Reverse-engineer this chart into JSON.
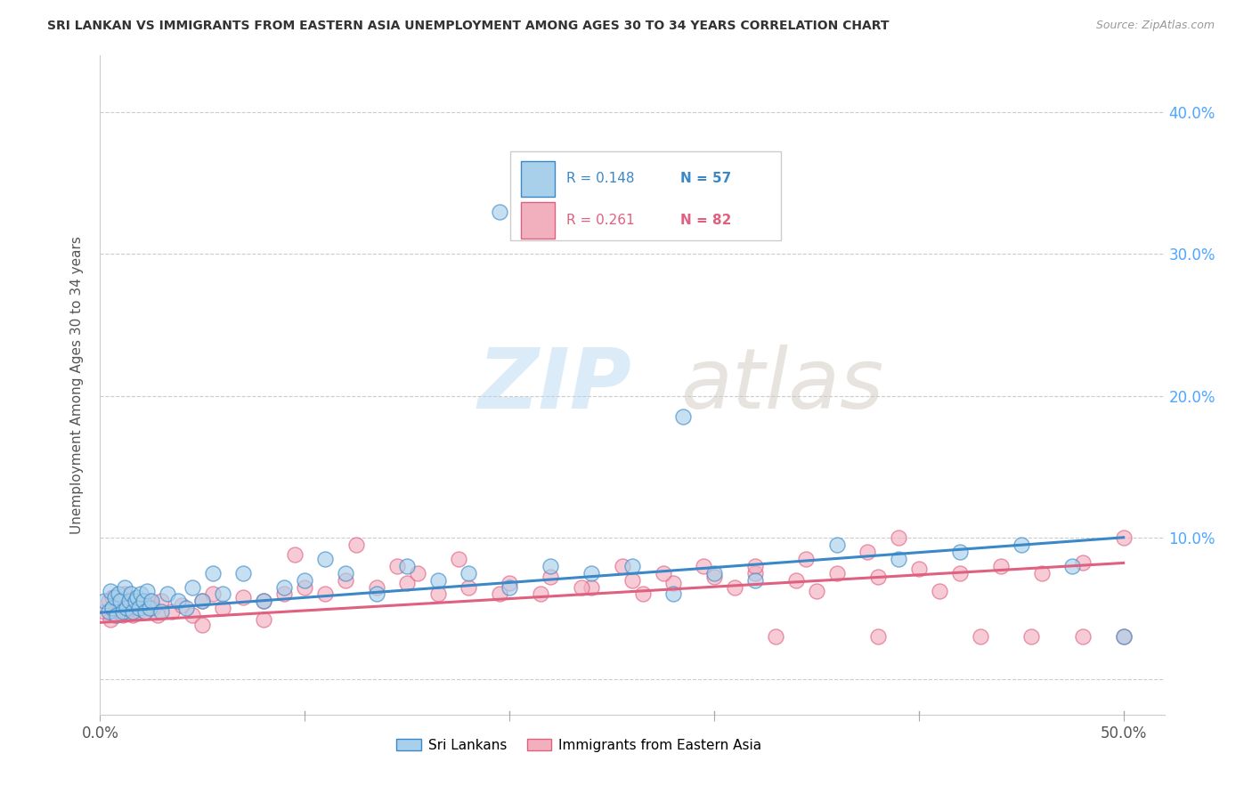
{
  "title": "SRI LANKAN VS IMMIGRANTS FROM EASTERN ASIA UNEMPLOYMENT AMONG AGES 30 TO 34 YEARS CORRELATION CHART",
  "source": "Source: ZipAtlas.com",
  "ylabel": "Unemployment Among Ages 30 to 34 years",
  "xlim": [
    0.0,
    0.52
  ],
  "ylim": [
    -0.025,
    0.44
  ],
  "xticks": [
    0.0,
    0.1,
    0.2,
    0.3,
    0.4,
    0.5
  ],
  "xtick_labels": [
    "0.0%",
    "",
    "",
    "",
    "",
    "50.0%"
  ],
  "ytick_positions": [
    0.0,
    0.1,
    0.2,
    0.3,
    0.4
  ],
  "ytick_labels_right": [
    "",
    "10.0%",
    "20.0%",
    "30.0%",
    "40.0%"
  ],
  "blue_r": 0.148,
  "blue_n": 57,
  "pink_r": 0.261,
  "pink_n": 82,
  "blue_color": "#a8d0ea",
  "pink_color": "#f2b0bf",
  "blue_line_color": "#3a88c8",
  "pink_line_color": "#e06080",
  "blue_trend_x": [
    0.0,
    0.5
  ],
  "blue_trend_y": [
    0.047,
    0.1
  ],
  "pink_trend_x": [
    0.0,
    0.5
  ],
  "pink_trend_y": [
    0.04,
    0.082
  ],
  "watermark_text": "ZIPatlas",
  "blue_scatter_x": [
    0.002,
    0.004,
    0.005,
    0.006,
    0.007,
    0.008,
    0.009,
    0.01,
    0.011,
    0.012,
    0.013,
    0.014,
    0.015,
    0.016,
    0.017,
    0.018,
    0.019,
    0.02,
    0.021,
    0.022,
    0.023,
    0.024,
    0.025,
    0.03,
    0.033,
    0.038,
    0.042,
    0.045,
    0.05,
    0.055,
    0.06,
    0.07,
    0.08,
    0.09,
    0.1,
    0.11,
    0.12,
    0.135,
    0.15,
    0.165,
    0.18,
    0.2,
    0.22,
    0.24,
    0.26,
    0.28,
    0.3,
    0.32,
    0.36,
    0.39,
    0.42,
    0.45,
    0.475,
    0.195,
    0.255,
    0.285,
    0.5
  ],
  "blue_scatter_y": [
    0.055,
    0.048,
    0.062,
    0.05,
    0.058,
    0.045,
    0.06,
    0.055,
    0.048,
    0.065,
    0.05,
    0.055,
    0.06,
    0.048,
    0.055,
    0.058,
    0.05,
    0.06,
    0.055,
    0.048,
    0.062,
    0.05,
    0.055,
    0.048,
    0.06,
    0.055,
    0.05,
    0.065,
    0.055,
    0.075,
    0.06,
    0.075,
    0.055,
    0.065,
    0.07,
    0.085,
    0.075,
    0.06,
    0.08,
    0.07,
    0.075,
    0.065,
    0.08,
    0.075,
    0.08,
    0.06,
    0.075,
    0.07,
    0.095,
    0.085,
    0.09,
    0.095,
    0.08,
    0.33,
    0.33,
    0.185,
    0.03
  ],
  "pink_scatter_x": [
    0.002,
    0.004,
    0.005,
    0.006,
    0.007,
    0.008,
    0.009,
    0.01,
    0.011,
    0.012,
    0.013,
    0.014,
    0.015,
    0.016,
    0.017,
    0.018,
    0.019,
    0.02,
    0.022,
    0.024,
    0.026,
    0.028,
    0.03,
    0.035,
    0.04,
    0.045,
    0.05,
    0.055,
    0.06,
    0.07,
    0.08,
    0.09,
    0.1,
    0.11,
    0.12,
    0.135,
    0.15,
    0.165,
    0.18,
    0.2,
    0.22,
    0.24,
    0.26,
    0.28,
    0.3,
    0.32,
    0.34,
    0.36,
    0.38,
    0.4,
    0.42,
    0.44,
    0.46,
    0.48,
    0.5,
    0.175,
    0.195,
    0.215,
    0.235,
    0.255,
    0.275,
    0.295,
    0.32,
    0.345,
    0.375,
    0.39,
    0.265,
    0.31,
    0.35,
    0.41,
    0.155,
    0.43,
    0.455,
    0.095,
    0.125,
    0.145,
    0.33,
    0.38,
    0.48,
    0.5,
    0.08,
    0.05
  ],
  "pink_scatter_y": [
    0.048,
    0.055,
    0.042,
    0.058,
    0.045,
    0.055,
    0.048,
    0.052,
    0.045,
    0.06,
    0.048,
    0.052,
    0.055,
    0.045,
    0.05,
    0.055,
    0.048,
    0.052,
    0.048,
    0.055,
    0.05,
    0.045,
    0.055,
    0.048,
    0.052,
    0.045,
    0.055,
    0.06,
    0.05,
    0.058,
    0.055,
    0.06,
    0.065,
    0.06,
    0.07,
    0.065,
    0.068,
    0.06,
    0.065,
    0.068,
    0.072,
    0.065,
    0.07,
    0.068,
    0.072,
    0.075,
    0.07,
    0.075,
    0.072,
    0.078,
    0.075,
    0.08,
    0.075,
    0.082,
    0.1,
    0.085,
    0.06,
    0.06,
    0.065,
    0.08,
    0.075,
    0.08,
    0.08,
    0.085,
    0.09,
    0.1,
    0.06,
    0.065,
    0.062,
    0.062,
    0.075,
    0.03,
    0.03,
    0.088,
    0.095,
    0.08,
    0.03,
    0.03,
    0.03,
    0.03,
    0.042,
    0.038
  ]
}
